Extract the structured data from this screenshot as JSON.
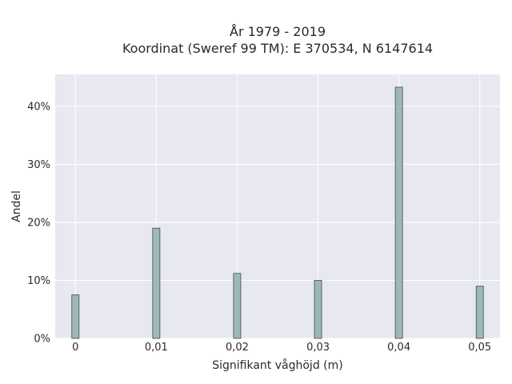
{
  "chart_data": {
    "type": "bar",
    "title_line1": "År 1979 - 2019",
    "title_line2": "Koordinat (Sweref 99 TM): E 370534, N 6147614",
    "xlabel": "Signifikant våghöjd (m)",
    "ylabel": "Andel",
    "x": [
      0,
      0.01,
      0.02,
      0.03,
      0.04,
      0.05
    ],
    "values": [
      7.5,
      19.0,
      11.2,
      10.0,
      43.3,
      9.0
    ],
    "x_tick_labels": [
      "0",
      "0,01",
      "0,02",
      "0,03",
      "0,04",
      "0,05"
    ],
    "y_tick_labels": [
      "0%",
      "10%",
      "20%",
      "30%",
      "40%"
    ],
    "y_ticks": [
      0,
      10,
      20,
      30,
      40
    ],
    "xlim": [
      -0.0025,
      0.0525
    ],
    "ylim": [
      0,
      45.5
    ],
    "grid": true,
    "bar_color": "#9db8b8",
    "bar_edge_color": "#3d4a4a",
    "plot_background": "#e8e8f1"
  }
}
